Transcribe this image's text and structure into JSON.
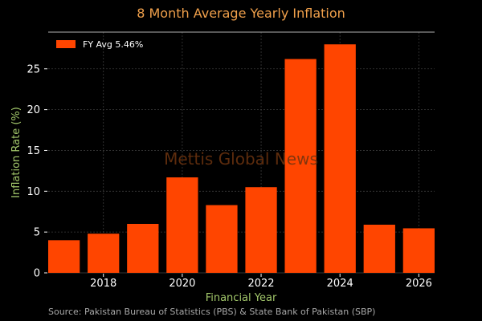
{
  "chart_data": {
    "type": "bar",
    "title": "8 Month Average Yearly Inflation",
    "xlabel": "Financial Year",
    "ylabel": "Inflation Rate (%)",
    "x": [
      2017,
      2018,
      2019,
      2020,
      2021,
      2022,
      2023,
      2024,
      2025,
      2026
    ],
    "values": [
      4.0,
      4.8,
      6.0,
      11.7,
      8.3,
      10.5,
      26.2,
      28.0,
      5.9,
      5.46
    ],
    "xticks": [
      "2018",
      "2020",
      "2022",
      "2024",
      "2026"
    ],
    "xtick_values": [
      2018,
      2020,
      2022,
      2024,
      2026
    ],
    "yticks": [
      "0",
      "5",
      "10",
      "15",
      "20",
      "25"
    ],
    "ytick_values": [
      0,
      5,
      10,
      15,
      20,
      25
    ],
    "xlim": [
      2016.6,
      2026.4
    ],
    "ylim": [
      0,
      29.5
    ],
    "grid": true,
    "legend": {
      "label": "FY Avg 5.46%",
      "placement": "top-left"
    },
    "bar_color": "#ff4500",
    "watermark": "Mettis Global News",
    "source": "Source: Pakistan Bureau of Statistics (PBS) & State Bank of Pakistan (SBP)"
  }
}
